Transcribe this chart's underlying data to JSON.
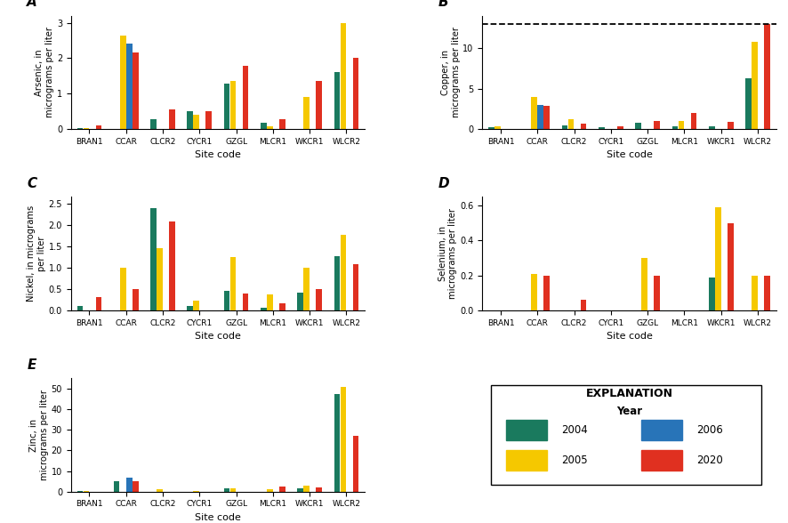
{
  "sites": [
    "BRAN1",
    "CCAR",
    "CLCR2",
    "CYCR1",
    "GZGL",
    "MLCR1",
    "WKCR1",
    "WLCR2"
  ],
  "years": [
    "2004",
    "2005",
    "2006",
    "2020"
  ],
  "colors": [
    "#1a7a5e",
    "#f5c800",
    "#2874b8",
    "#e03020"
  ],
  "arsenic": {
    "2004": [
      0.02,
      0.0,
      0.27,
      0.5,
      1.27,
      0.17,
      0.0,
      1.6
    ],
    "2005": [
      0.02,
      2.63,
      0.0,
      0.4,
      1.35,
      0.08,
      0.9,
      3.0
    ],
    "2006": [
      0.0,
      2.4,
      0.0,
      0.0,
      0.0,
      0.0,
      0.0,
      0.0
    ],
    "2020": [
      0.1,
      2.17,
      0.55,
      0.5,
      1.78,
      0.27,
      1.35,
      2.0
    ]
  },
  "copper": {
    "2004": [
      0.2,
      0.0,
      0.45,
      0.22,
      0.72,
      0.35,
      0.3,
      6.3
    ],
    "2005": [
      0.35,
      4.0,
      1.2,
      0.0,
      0.0,
      1.0,
      0.0,
      10.8
    ],
    "2006": [
      0.0,
      3.0,
      0.0,
      0.0,
      0.0,
      0.0,
      0.0,
      0.0
    ],
    "2020": [
      0.05,
      2.9,
      0.7,
      0.3,
      1.0,
      2.0,
      0.9,
      13.0
    ],
    "dashed_line": 13.0
  },
  "nickel": {
    "2004": [
      0.1,
      0.0,
      2.38,
      0.1,
      0.45,
      0.05,
      0.42,
      1.27
    ],
    "2005": [
      0.0,
      1.0,
      1.46,
      0.22,
      1.25,
      0.37,
      1.0,
      1.77
    ],
    "2006": [
      0.0,
      0.0,
      0.0,
      0.0,
      0.0,
      0.0,
      0.0,
      0.0
    ],
    "2020": [
      0.3,
      0.5,
      2.08,
      0.0,
      0.4,
      0.17,
      0.5,
      1.08
    ]
  },
  "selenium": {
    "2004": [
      0.0,
      0.0,
      0.0,
      0.0,
      0.0,
      0.0,
      0.19,
      0.0
    ],
    "2005": [
      0.0,
      0.21,
      0.0,
      0.0,
      0.3,
      0.0,
      0.59,
      0.2
    ],
    "2006": [
      0.0,
      0.0,
      0.0,
      0.0,
      0.0,
      0.0,
      0.0,
      0.0
    ],
    "2020": [
      0.0,
      0.2,
      0.06,
      0.0,
      0.2,
      0.0,
      0.5,
      0.2
    ]
  },
  "zinc": {
    "2004": [
      0.5,
      5.0,
      0.0,
      0.0,
      1.5,
      0.0,
      1.8,
      47.5
    ],
    "2005": [
      0.5,
      0.0,
      1.2,
      0.5,
      1.5,
      1.0,
      3.0,
      51.0
    ],
    "2006": [
      0.0,
      7.0,
      0.0,
      0.0,
      0.0,
      0.0,
      0.0,
      0.0
    ],
    "2020": [
      0.0,
      5.0,
      0.0,
      0.0,
      0.0,
      2.5,
      2.0,
      27.0
    ]
  },
  "ylims": {
    "arsenic": [
      0,
      3.2
    ],
    "copper": [
      0,
      14.0
    ],
    "nickel": [
      0,
      2.65
    ],
    "selenium": [
      0,
      0.65
    ],
    "zinc": [
      0,
      55
    ]
  },
  "yticks": {
    "arsenic": [
      0,
      1,
      2,
      3
    ],
    "copper": [
      0,
      5,
      10
    ],
    "nickel": [
      0,
      0.5,
      1.0,
      1.5,
      2.0,
      2.5
    ],
    "selenium": [
      0.0,
      0.2,
      0.4,
      0.6
    ],
    "zinc": [
      0,
      10,
      20,
      30,
      40,
      50
    ]
  },
  "ylabels": {
    "arsenic": "Arsenic, in\nmicrograms per liter",
    "copper": "Copper, in\nmicrograms per liter",
    "nickel": "Nickel, in micrograms\nper liter",
    "selenium": "Selenium, in\nmicrograms per liter",
    "zinc": "Zinc, in\nmicrograms per liter"
  },
  "panel_labels": [
    "A",
    "B",
    "C",
    "D",
    "E"
  ],
  "legend_years": [
    "2004",
    "2005",
    "2006",
    "2020"
  ],
  "legend_colors": [
    "#1a7a5e",
    "#f5c800",
    "#2874b8",
    "#e03020"
  ]
}
